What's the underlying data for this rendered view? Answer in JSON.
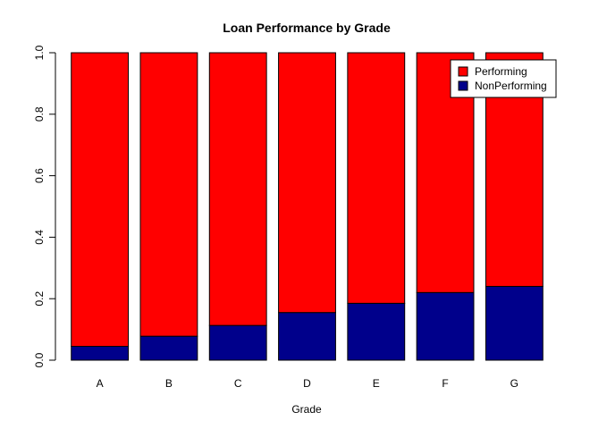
{
  "chart_data": {
    "type": "bar",
    "stacked": true,
    "title": "Loan Performance by Grade",
    "xlabel": "Grade",
    "ylabel": "",
    "ylim": [
      0,
      1
    ],
    "yticks": [
      "0.0",
      "0.2",
      "0.4",
      "0.6",
      "0.8",
      "1.0"
    ],
    "categories": [
      "A",
      "B",
      "C",
      "D",
      "E",
      "F",
      "G"
    ],
    "series": [
      {
        "name": "NonPerforming",
        "color": "#00008B",
        "values": [
          0.045,
          0.078,
          0.113,
          0.155,
          0.185,
          0.22,
          0.24
        ]
      },
      {
        "name": "Performing",
        "color": "#FF0000",
        "values": [
          0.955,
          0.922,
          0.887,
          0.845,
          0.815,
          0.78,
          0.76
        ]
      }
    ],
    "legend": {
      "position": "top-right",
      "entries": [
        {
          "label": "Performing",
          "color": "#FF0000"
        },
        {
          "label": "NonPerforming",
          "color": "#00008B"
        }
      ]
    },
    "grid": false
  }
}
